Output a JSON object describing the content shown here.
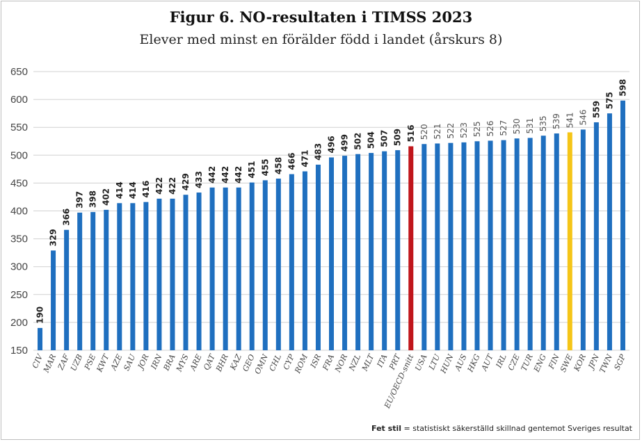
{
  "header": {
    "title": "Figur 6. NO-resultaten i TIMSS 2023",
    "subtitle": "Elever med minst en förälder född i landet (årskurs 8)"
  },
  "footnote": {
    "bold": "Fet stil",
    "text": " = statistiskt säkerställd skillnad gentemot Sveriges resultat"
  },
  "colors": {
    "default_bar": "#1f6fbf",
    "oecd_bar": "#c0161b",
    "swe_bar": "#f5c518",
    "grid": "#d0d0d0",
    "tick_text": "#444444"
  },
  "chart_data": {
    "type": "bar",
    "title": "Figur 6. NO-resultaten i TIMSS 2023",
    "subtitle": "Elever med minst en förälder född i landet (årskurs 8)",
    "xlabel": "",
    "ylabel": "",
    "ylim": [
      150,
      650
    ],
    "yticks": [
      150,
      200,
      250,
      300,
      350,
      400,
      450,
      500,
      550,
      600,
      650
    ],
    "grid": true,
    "categories": [
      "CIV",
      "MAR",
      "ZAF",
      "UZB",
      "PSE",
      "KWT",
      "AZE",
      "SAU",
      "JOR",
      "IRN",
      "BRA",
      "MYS",
      "ARE",
      "QAT",
      "BHR",
      "KAZ",
      "GEO",
      "OMN",
      "CHL",
      "CYP",
      "ROM",
      "ISR",
      "FRA",
      "NOR",
      "NZL",
      "MLT",
      "ITA",
      "PRT",
      "EU/OECD-snitt",
      "USA",
      "LTU",
      "HUN",
      "AUS",
      "HKG",
      "AUT",
      "IRL",
      "CZE",
      "TUR",
      "ENG",
      "FIN",
      "SWE",
      "KOR",
      "JPN",
      "TWN",
      "SGP"
    ],
    "values": [
      190,
      329,
      366,
      397,
      398,
      402,
      414,
      414,
      416,
      422,
      422,
      429,
      433,
      442,
      442,
      442,
      451,
      455,
      458,
      466,
      471,
      483,
      496,
      499,
      502,
      504,
      507,
      509,
      516,
      520,
      521,
      522,
      523,
      525,
      526,
      527,
      530,
      531,
      535,
      539,
      541,
      546,
      559,
      575,
      598
    ],
    "bold_labels": [
      true,
      true,
      true,
      true,
      true,
      true,
      true,
      true,
      true,
      true,
      true,
      true,
      true,
      true,
      true,
      true,
      true,
      true,
      true,
      true,
      true,
      true,
      true,
      true,
      true,
      true,
      true,
      true,
      true,
      false,
      false,
      false,
      false,
      false,
      false,
      false,
      false,
      false,
      false,
      false,
      false,
      false,
      true,
      true,
      true
    ],
    "highlight": {
      "EU/OECD-snitt": "red",
      "SWE": "yellow"
    }
  }
}
